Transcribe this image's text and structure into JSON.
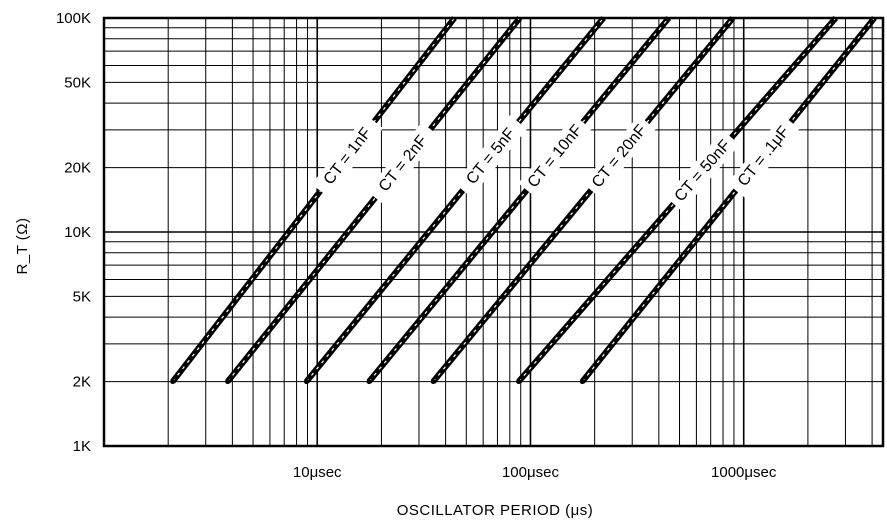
{
  "chart_data": {
    "type": "line",
    "xlabel": "OSCILLATOR PERIOD (μs)",
    "ylabel": "R_T (Ω)",
    "x_scale": "log",
    "y_scale": "log",
    "xlim": [
      1,
      4500
    ],
    "ylim": [
      1000,
      100000
    ],
    "grid": true,
    "x_ticks": [
      {
        "value": 10,
        "label": "10μsec"
      },
      {
        "value": 100,
        "label": "100μsec"
      },
      {
        "value": 1000,
        "label": "1000μsec"
      }
    ],
    "y_ticks": [
      {
        "value": 1000,
        "label": "1K"
      },
      {
        "value": 2000,
        "label": "2K"
      },
      {
        "value": 5000,
        "label": "5K"
      },
      {
        "value": 10000,
        "label": "10K"
      },
      {
        "value": 20000,
        "label": "20K"
      },
      {
        "value": 50000,
        "label": "50K"
      },
      {
        "value": 100000,
        "label": "100K"
      }
    ],
    "series": [
      {
        "label": "CT = 1nF",
        "x": [
          2.1,
          44
        ],
        "y": [
          2000,
          100000
        ]
      },
      {
        "label": "CT = 2nF",
        "x": [
          3.8,
          89
        ],
        "y": [
          2000,
          100000
        ]
      },
      {
        "label": "CT = 5nF",
        "x": [
          8.9,
          220
        ],
        "y": [
          2000,
          100000
        ]
      },
      {
        "label": "CT = 10nF",
        "x": [
          17.5,
          445
        ],
        "y": [
          2000,
          100000
        ]
      },
      {
        "label": "CT = 20nF",
        "x": [
          35,
          890
        ],
        "y": [
          2000,
          100000
        ]
      },
      {
        "label": "CT = 50nF",
        "x": [
          88,
          2700
        ],
        "y": [
          2000,
          100000
        ]
      },
      {
        "label": "CT = .1μF",
        "x": [
          175,
          4100
        ],
        "y": [
          2000,
          100000
        ]
      }
    ]
  }
}
